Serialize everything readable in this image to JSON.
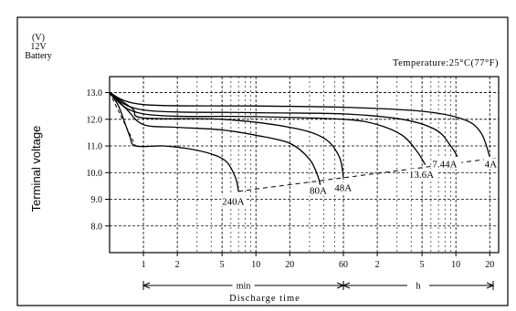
{
  "chart_data": {
    "type": "line",
    "header": {
      "unit": "(V)",
      "battery_voltage": "12V",
      "battery_label": "Battery"
    },
    "temperature_note": "Temperature:25°C(77°F)",
    "ylabel": "Terminal voltage",
    "xlabel": "Discharge time",
    "y_ticks": [
      "13.0",
      "12.0",
      "11.0",
      "10.0",
      "9.0",
      "8.0"
    ],
    "ylim": [
      7.0,
      13.6
    ],
    "x_scale": "log",
    "x_range_minutes": [
      0.5,
      1440
    ],
    "x_ticks": [
      {
        "label": "1",
        "minutes": 1
      },
      {
        "label": "2",
        "minutes": 2
      },
      {
        "label": "5",
        "minutes": 5
      },
      {
        "label": "10",
        "minutes": 10
      },
      {
        "label": "20",
        "minutes": 20
      },
      {
        "label": "60",
        "minutes": 60
      },
      {
        "label": "2",
        "minutes": 120
      },
      {
        "label": "5",
        "minutes": 300
      },
      {
        "label": "10",
        "minutes": 600
      },
      {
        "label": "20",
        "minutes": 1200
      }
    ],
    "x_minor_minutes": [
      3,
      4,
      6,
      7,
      8,
      9,
      30,
      40,
      50,
      180,
      240,
      360,
      420,
      480,
      540
    ],
    "x_segments": [
      {
        "label": "min",
        "from": 0.5,
        "to": 60
      },
      {
        "label": "h",
        "from": 60,
        "to": 1440
      }
    ],
    "grid": true,
    "series": [
      {
        "name": "240A",
        "points": [
          [
            0.5,
            13.0
          ],
          [
            0.6,
            12.5
          ],
          [
            0.75,
            11.4
          ],
          [
            0.85,
            11.0
          ],
          [
            1.5,
            11.0
          ],
          [
            2.5,
            10.9
          ],
          [
            4,
            10.7
          ],
          [
            5.5,
            10.4
          ],
          [
            6.6,
            9.8
          ],
          [
            7.0,
            9.3
          ]
        ]
      },
      {
        "name": "80A",
        "points": [
          [
            0.5,
            13.0
          ],
          [
            0.7,
            12.4
          ],
          [
            1.0,
            11.8
          ],
          [
            2,
            11.7
          ],
          [
            5,
            11.6
          ],
          [
            10,
            11.4
          ],
          [
            20,
            11.1
          ],
          [
            30,
            10.5
          ],
          [
            36,
            9.8
          ],
          [
            38,
            9.3
          ]
        ]
      },
      {
        "name": "48A",
        "points": [
          [
            0.5,
            13.0
          ],
          [
            0.8,
            12.4
          ],
          [
            1.0,
            12.05
          ],
          [
            5,
            12.0
          ],
          [
            20,
            11.7
          ],
          [
            40,
            11.3
          ],
          [
            55,
            10.6
          ],
          [
            60,
            9.8
          ]
        ]
      },
      {
        "name": "13.6A",
        "points": [
          [
            0.5,
            13.0
          ],
          [
            1.0,
            12.2
          ],
          [
            10,
            12.1
          ],
          [
            60,
            12.0
          ],
          [
            120,
            11.8
          ],
          [
            200,
            11.4
          ],
          [
            270,
            10.8
          ],
          [
            320,
            10.3
          ]
        ]
      },
      {
        "name": "7.44A",
        "points": [
          [
            0.5,
            13.0
          ],
          [
            1.0,
            12.35
          ],
          [
            10,
            12.25
          ],
          [
            60,
            12.2
          ],
          [
            200,
            12.0
          ],
          [
            400,
            11.6
          ],
          [
            540,
            11.0
          ],
          [
            620,
            10.6
          ]
        ]
      },
      {
        "name": "4A",
        "points": [
          [
            0.5,
            13.0
          ],
          [
            1.0,
            12.55
          ],
          [
            10,
            12.5
          ],
          [
            60,
            12.45
          ],
          [
            300,
            12.3
          ],
          [
            700,
            12.0
          ],
          [
            1000,
            11.5
          ],
          [
            1200,
            10.6
          ]
        ]
      }
    ],
    "end_voltage_line": {
      "from": [
        7.0,
        9.3
      ],
      "to": [
        1380,
        10.55
      ]
    },
    "initial_dash": {
      "from": [
        0.5,
        13.0
      ],
      "to": [
        0.85,
        11.0
      ]
    },
    "curve_labels": [
      {
        "text": "240A",
        "at_minutes": 5.0,
        "at_volts": 8.8
      },
      {
        "text": "80A",
        "at_minutes": 30,
        "at_volts": 9.2
      },
      {
        "text": "48A",
        "at_minutes": 50,
        "at_volts": 9.3
      },
      {
        "text": "13.6A",
        "at_minutes": 230,
        "at_volts": 9.8
      },
      {
        "text": "7.44A",
        "at_minutes": 370,
        "at_volts": 10.2
      },
      {
        "text": "4A",
        "at_minutes": 1080,
        "at_volts": 10.2
      }
    ]
  }
}
